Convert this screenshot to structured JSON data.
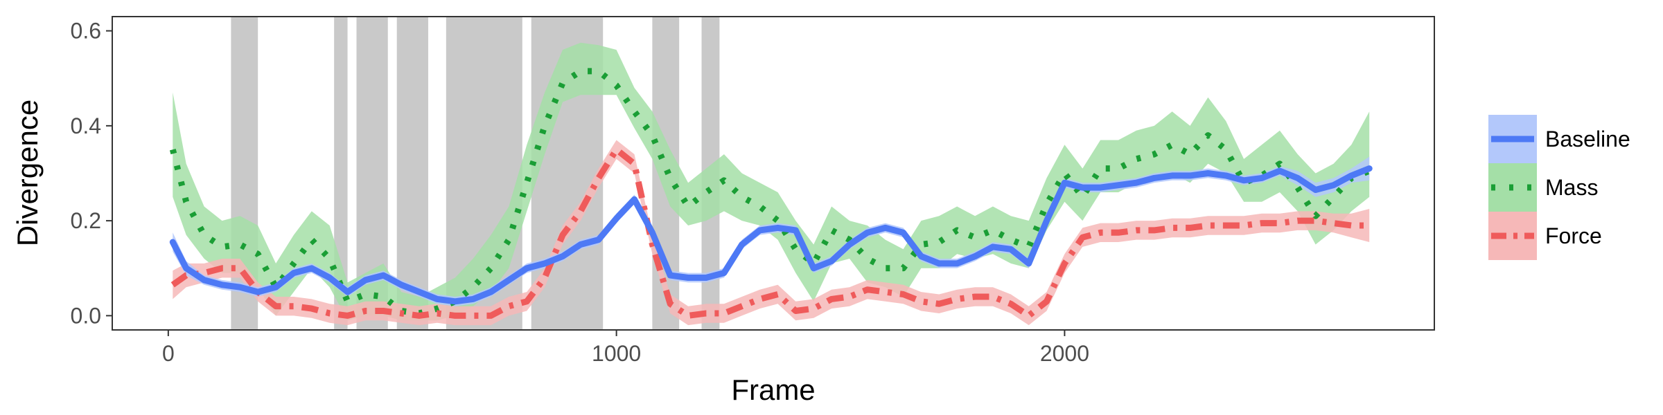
{
  "chart_data": {
    "type": "line",
    "title": "",
    "xlabel": "Frame",
    "ylabel": "Divergence",
    "xlim": [
      -125,
      2825
    ],
    "ylim": [
      -0.03,
      0.63
    ],
    "x_ticks": [
      0,
      1000,
      2000
    ],
    "x_tick_labels": [
      "0",
      "1000",
      "2000"
    ],
    "y_ticks": [
      0,
      0.2,
      0.4,
      0.6
    ],
    "y_tick_labels": [
      "0.0",
      "0.2",
      "0.4",
      "0.6"
    ],
    "grid": false,
    "legend_position": "right",
    "shaded_intervals": [
      [
        140,
        200
      ],
      [
        370,
        400
      ],
      [
        420,
        490
      ],
      [
        510,
        580
      ],
      [
        620,
        790
      ],
      [
        810,
        970
      ],
      [
        1080,
        1140
      ],
      [
        1190,
        1230
      ]
    ],
    "x": [
      10,
      40,
      80,
      120,
      160,
      200,
      240,
      280,
      320,
      360,
      400,
      440,
      480,
      520,
      560,
      600,
      640,
      680,
      720,
      760,
      800,
      840,
      880,
      920,
      960,
      1000,
      1040,
      1080,
      1120,
      1160,
      1200,
      1240,
      1280,
      1320,
      1360,
      1400,
      1440,
      1480,
      1520,
      1560,
      1600,
      1640,
      1680,
      1720,
      1760,
      1800,
      1840,
      1880,
      1920,
      1960,
      2000,
      2040,
      2080,
      2120,
      2160,
      2200,
      2240,
      2280,
      2320,
      2360,
      2400,
      2440,
      2480,
      2520,
      2560,
      2600,
      2640,
      2680
    ],
    "series": [
      {
        "name": "Baseline",
        "color": "#4d79f5",
        "fill": "#b3c8fb",
        "linestyle": "solid",
        "values": [
          0.155,
          0.1,
          0.075,
          0.065,
          0.06,
          0.05,
          0.06,
          0.09,
          0.1,
          0.08,
          0.05,
          0.075,
          0.085,
          0.065,
          0.05,
          0.035,
          0.03,
          0.035,
          0.05,
          0.075,
          0.1,
          0.11,
          0.125,
          0.15,
          0.16,
          0.205,
          0.245,
          0.175,
          0.085,
          0.08,
          0.08,
          0.09,
          0.15,
          0.18,
          0.185,
          0.18,
          0.1,
          0.115,
          0.15,
          0.175,
          0.185,
          0.175,
          0.125,
          0.11,
          0.11,
          0.125,
          0.145,
          0.14,
          0.11,
          0.2,
          0.28,
          0.27,
          0.27,
          0.275,
          0.28,
          0.29,
          0.295,
          0.295,
          0.3,
          0.295,
          0.285,
          0.29,
          0.305,
          0.29,
          0.265,
          0.275,
          0.295,
          0.31
        ],
        "lower": [
          0.135,
          0.085,
          0.065,
          0.055,
          0.05,
          0.04,
          0.05,
          0.08,
          0.09,
          0.07,
          0.04,
          0.065,
          0.075,
          0.055,
          0.04,
          0.025,
          0.02,
          0.025,
          0.04,
          0.065,
          0.09,
          0.1,
          0.115,
          0.14,
          0.15,
          0.195,
          0.235,
          0.165,
          0.075,
          0.07,
          0.07,
          0.08,
          0.14,
          0.17,
          0.175,
          0.17,
          0.09,
          0.105,
          0.14,
          0.165,
          0.175,
          0.165,
          0.115,
          0.1,
          0.1,
          0.115,
          0.135,
          0.13,
          0.1,
          0.19,
          0.27,
          0.26,
          0.26,
          0.265,
          0.27,
          0.28,
          0.285,
          0.285,
          0.29,
          0.285,
          0.275,
          0.28,
          0.295,
          0.275,
          0.25,
          0.26,
          0.28,
          0.285
        ],
        "upper": [
          0.175,
          0.115,
          0.085,
          0.075,
          0.07,
          0.06,
          0.07,
          0.1,
          0.11,
          0.09,
          0.06,
          0.085,
          0.095,
          0.075,
          0.06,
          0.045,
          0.04,
          0.045,
          0.06,
          0.085,
          0.11,
          0.12,
          0.135,
          0.16,
          0.17,
          0.215,
          0.255,
          0.185,
          0.095,
          0.09,
          0.09,
          0.1,
          0.16,
          0.19,
          0.195,
          0.19,
          0.11,
          0.125,
          0.16,
          0.185,
          0.195,
          0.185,
          0.135,
          0.12,
          0.12,
          0.135,
          0.155,
          0.15,
          0.12,
          0.21,
          0.29,
          0.28,
          0.28,
          0.285,
          0.29,
          0.3,
          0.305,
          0.305,
          0.31,
          0.305,
          0.295,
          0.3,
          0.315,
          0.305,
          0.28,
          0.29,
          0.31,
          0.335
        ]
      },
      {
        "name": "Mass",
        "color": "#1a9e35",
        "fill": "#a4dfa7",
        "linestyle": "dotted",
        "values": [
          0.35,
          0.24,
          0.17,
          0.145,
          0.15,
          0.13,
          0.06,
          0.11,
          0.16,
          0.12,
          0.03,
          0.045,
          0.04,
          0.01,
          0.005,
          0.015,
          0.03,
          0.06,
          0.1,
          0.16,
          0.28,
          0.4,
          0.49,
          0.515,
          0.515,
          0.485,
          0.43,
          0.38,
          0.29,
          0.23,
          0.26,
          0.285,
          0.25,
          0.23,
          0.2,
          0.14,
          0.11,
          0.18,
          0.16,
          0.12,
          0.1,
          0.1,
          0.15,
          0.155,
          0.18,
          0.165,
          0.18,
          0.16,
          0.145,
          0.235,
          0.3,
          0.25,
          0.31,
          0.31,
          0.33,
          0.34,
          0.36,
          0.34,
          0.38,
          0.35,
          0.28,
          0.295,
          0.32,
          0.27,
          0.21,
          0.25,
          0.29,
          0.305
        ],
        "lower": [
          0.25,
          0.17,
          0.12,
          0.09,
          0.09,
          0.06,
          0.0,
          0.05,
          0.1,
          0.06,
          -0.01,
          0.0,
          0.0,
          -0.01,
          -0.01,
          -0.01,
          0.0,
          0.02,
          0.05,
          0.1,
          0.22,
          0.34,
          0.45,
          0.465,
          0.465,
          0.465,
          0.395,
          0.33,
          0.23,
          0.19,
          0.2,
          0.22,
          0.2,
          0.19,
          0.16,
          0.09,
          0.03,
          0.11,
          0.12,
          0.07,
          0.06,
          0.04,
          0.1,
          0.1,
          0.13,
          0.12,
          0.13,
          0.11,
          0.1,
          0.18,
          0.24,
          0.2,
          0.26,
          0.26,
          0.28,
          0.29,
          0.3,
          0.28,
          0.32,
          0.3,
          0.24,
          0.24,
          0.26,
          0.22,
          0.15,
          0.18,
          0.22,
          0.25
        ],
        "upper": [
          0.47,
          0.32,
          0.23,
          0.2,
          0.21,
          0.19,
          0.11,
          0.17,
          0.22,
          0.19,
          0.07,
          0.09,
          0.11,
          0.05,
          0.04,
          0.06,
          0.08,
          0.12,
          0.17,
          0.23,
          0.36,
          0.47,
          0.56,
          0.575,
          0.57,
          0.56,
          0.48,
          0.43,
          0.35,
          0.28,
          0.31,
          0.34,
          0.3,
          0.28,
          0.26,
          0.2,
          0.15,
          0.23,
          0.2,
          0.19,
          0.16,
          0.14,
          0.2,
          0.21,
          0.23,
          0.21,
          0.23,
          0.21,
          0.2,
          0.29,
          0.36,
          0.31,
          0.37,
          0.37,
          0.39,
          0.4,
          0.43,
          0.4,
          0.46,
          0.41,
          0.33,
          0.36,
          0.39,
          0.34,
          0.3,
          0.32,
          0.36,
          0.43
        ]
      },
      {
        "name": "Force",
        "color": "#ef5b5b",
        "fill": "#f6b8b8",
        "linestyle": "dashdot",
        "values": [
          0.065,
          0.085,
          0.09,
          0.1,
          0.1,
          0.05,
          0.02,
          0.02,
          0.015,
          0.005,
          0.0,
          0.01,
          0.01,
          0.005,
          0.0,
          0.005,
          0.0,
          0.0,
          0.0,
          0.02,
          0.03,
          0.08,
          0.17,
          0.22,
          0.29,
          0.35,
          0.32,
          0.15,
          0.025,
          0.0,
          0.005,
          0.005,
          0.02,
          0.035,
          0.045,
          0.01,
          0.015,
          0.035,
          0.04,
          0.055,
          0.05,
          0.045,
          0.03,
          0.025,
          0.035,
          0.04,
          0.04,
          0.025,
          0.0,
          0.03,
          0.11,
          0.165,
          0.175,
          0.175,
          0.18,
          0.18,
          0.185,
          0.185,
          0.19,
          0.19,
          0.19,
          0.195,
          0.195,
          0.2,
          0.2,
          0.195,
          0.19,
          0.19
        ],
        "lower": [
          0.035,
          0.06,
          0.07,
          0.08,
          0.08,
          0.03,
          0.0,
          0.0,
          -0.005,
          -0.015,
          -0.02,
          -0.01,
          -0.01,
          -0.015,
          -0.02,
          -0.015,
          -0.02,
          -0.02,
          -0.02,
          0.0,
          0.01,
          0.06,
          0.15,
          0.2,
          0.27,
          0.33,
          0.3,
          0.13,
          0.005,
          -0.02,
          -0.015,
          -0.015,
          0.0,
          0.015,
          0.025,
          -0.01,
          -0.005,
          0.015,
          0.02,
          0.035,
          0.03,
          0.025,
          0.01,
          0.005,
          0.015,
          0.02,
          0.02,
          0.005,
          -0.02,
          0.01,
          0.09,
          0.145,
          0.155,
          0.155,
          0.16,
          0.16,
          0.165,
          0.165,
          0.17,
          0.17,
          0.17,
          0.175,
          0.175,
          0.18,
          0.18,
          0.175,
          0.165,
          0.155
        ],
        "upper": [
          0.095,
          0.11,
          0.11,
          0.12,
          0.12,
          0.07,
          0.04,
          0.04,
          0.035,
          0.025,
          0.02,
          0.03,
          0.03,
          0.025,
          0.02,
          0.025,
          0.02,
          0.02,
          0.02,
          0.04,
          0.05,
          0.1,
          0.19,
          0.24,
          0.31,
          0.37,
          0.34,
          0.17,
          0.045,
          0.02,
          0.025,
          0.025,
          0.04,
          0.055,
          0.065,
          0.03,
          0.035,
          0.055,
          0.06,
          0.075,
          0.07,
          0.065,
          0.05,
          0.045,
          0.055,
          0.06,
          0.06,
          0.045,
          0.02,
          0.05,
          0.13,
          0.185,
          0.195,
          0.195,
          0.2,
          0.2,
          0.205,
          0.205,
          0.21,
          0.21,
          0.21,
          0.215,
          0.215,
          0.22,
          0.22,
          0.215,
          0.215,
          0.225
        ]
      }
    ]
  }
}
